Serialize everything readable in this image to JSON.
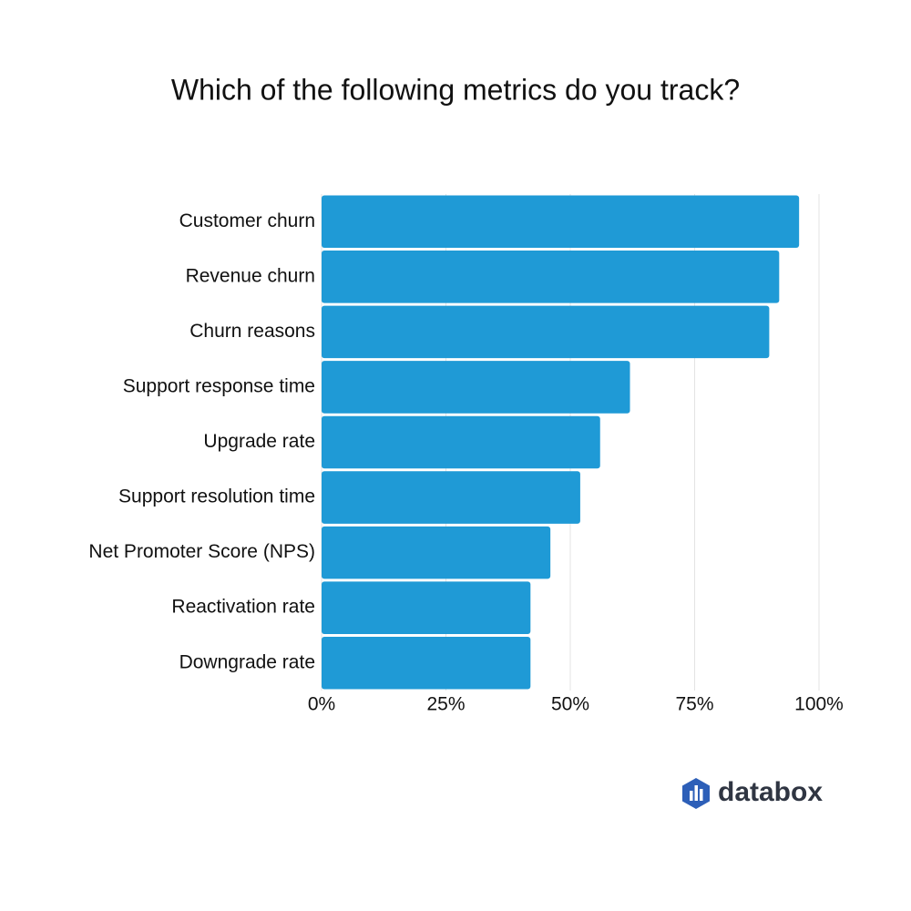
{
  "chart_data": {
    "type": "barh",
    "title": "Which of the following metrics do you track?",
    "categories": [
      "Customer churn",
      "Revenue churn",
      "Churn reasons",
      "Support response time",
      "Upgrade rate",
      "Support resolution time",
      "Net Promoter Score (NPS)",
      "Reactivation rate",
      "Downgrade rate"
    ],
    "values": [
      96,
      92,
      90,
      62,
      56,
      52,
      46,
      42,
      42
    ],
    "color": "#1f9ad6",
    "xlim": [
      0,
      100
    ],
    "xticks": [
      {
        "value": 0,
        "label": "0%"
      },
      {
        "value": 25,
        "label": "25%"
      },
      {
        "value": 50,
        "label": "50%"
      },
      {
        "value": 75,
        "label": "75%"
      },
      {
        "value": 100,
        "label": "100%"
      }
    ],
    "grid": true
  },
  "brand": "databox"
}
